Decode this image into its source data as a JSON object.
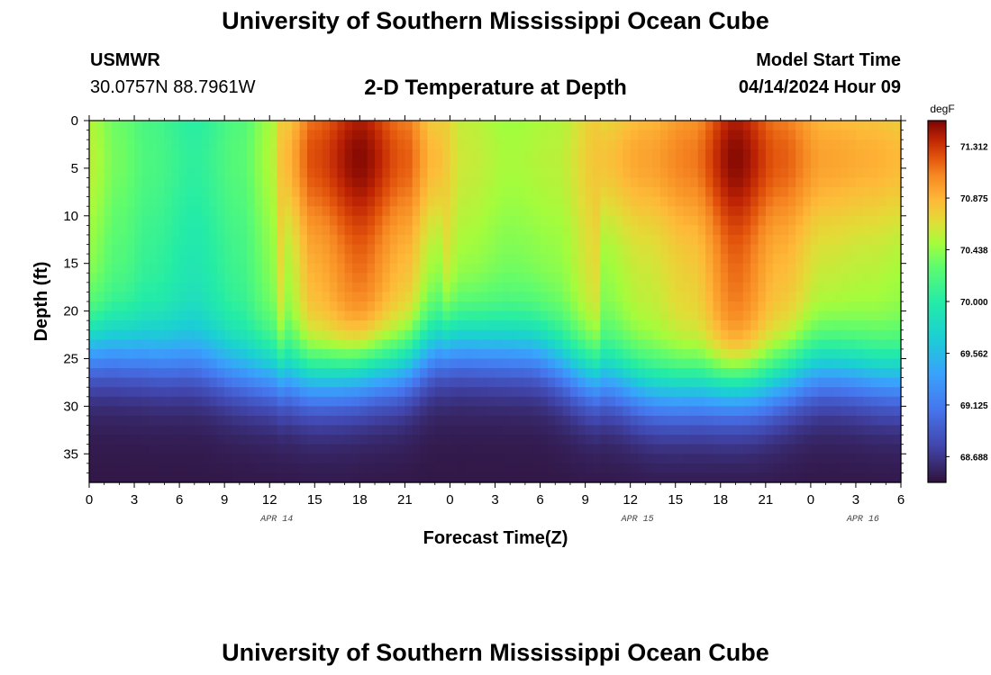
{
  "header": {
    "title": "University of Southern Mississippi Ocean Cube",
    "station": "USMWR",
    "coords": "30.0757N  88.7961W",
    "subtitle": "2-D Temperature at Depth",
    "model_label": "Model Start Time",
    "model_time": "04/14/2024 Hour 09"
  },
  "footer": {
    "title": "University of Southern Mississippi Ocean Cube"
  },
  "chart_data": {
    "type": "heatmap",
    "title": "2-D Temperature at Depth",
    "xlabel": "Forecast Time(Z)",
    "ylabel": "Depth (ft)",
    "x_range_hours": [
      0,
      54
    ],
    "y_range_ft": [
      0,
      38
    ],
    "x_ticks": [
      "0",
      "3",
      "6",
      "9",
      "12",
      "15",
      "18",
      "21",
      "0",
      "3",
      "6",
      "9",
      "12",
      "15",
      "18",
      "21",
      "0",
      "3",
      "6"
    ],
    "x_tick_hours": [
      0,
      3,
      6,
      9,
      12,
      15,
      18,
      21,
      24,
      27,
      30,
      33,
      36,
      39,
      42,
      45,
      48,
      51,
      54
    ],
    "y_ticks": [
      "0",
      "5",
      "10",
      "15",
      "20",
      "25",
      "30",
      "35"
    ],
    "y_tick_values": [
      0,
      5,
      10,
      15,
      20,
      25,
      30,
      35
    ],
    "date_labels": [
      {
        "text": "APR 14",
        "hour": 12
      },
      {
        "text": "APR 15",
        "hour": 36
      },
      {
        "text": "APR 16",
        "hour": 51
      }
    ],
    "colorbar": {
      "unit": "degF",
      "range": [
        68.47,
        71.53
      ],
      "tick_labels": [
        "71.312",
        "70.875",
        "70.438",
        "70.000",
        "69.562",
        "69.125",
        "68.688"
      ],
      "tick_values": [
        71.312,
        70.875,
        70.438,
        70.0,
        69.562,
        69.125,
        68.688
      ]
    },
    "surface_temperature_profile": [
      {
        "hour": 0,
        "t": 70.55
      },
      {
        "hour": 2,
        "t": 70.35
      },
      {
        "hour": 4,
        "t": 70.2
      },
      {
        "hour": 7,
        "t": 70.05
      },
      {
        "hour": 10,
        "t": 70.25
      },
      {
        "hour": 12,
        "t": 70.5
      },
      {
        "hour": 13,
        "t": 70.85
      },
      {
        "hour": 15,
        "t": 71.25
      },
      {
        "hour": 18,
        "t": 71.5
      },
      {
        "hour": 21,
        "t": 71.2
      },
      {
        "hour": 23,
        "t": 70.85
      },
      {
        "hour": 25,
        "t": 70.6
      },
      {
        "hour": 28,
        "t": 70.5
      },
      {
        "hour": 31,
        "t": 70.55
      },
      {
        "hour": 34,
        "t": 70.8
      },
      {
        "hour": 37,
        "t": 70.95
      },
      {
        "hour": 40,
        "t": 71.1
      },
      {
        "hour": 43,
        "t": 71.5
      },
      {
        "hour": 46,
        "t": 71.2
      },
      {
        "hour": 49,
        "t": 70.95
      },
      {
        "hour": 52,
        "t": 70.9
      },
      {
        "hour": 54,
        "t": 70.85
      }
    ],
    "thermocline_depth_profile": [
      {
        "hour": 0,
        "d": 24
      },
      {
        "hour": 6,
        "d": 25
      },
      {
        "hour": 11,
        "d": 26.5
      },
      {
        "hour": 15,
        "d": 27
      },
      {
        "hour": 20,
        "d": 26
      },
      {
        "hour": 24,
        "d": 23.5
      },
      {
        "hour": 29,
        "d": 24
      },
      {
        "hour": 34,
        "d": 27
      },
      {
        "hour": 38,
        "d": 28.5
      },
      {
        "hour": 44,
        "d": 28
      },
      {
        "hour": 49,
        "d": 26
      },
      {
        "hour": 54,
        "d": 27
      }
    ],
    "bottom_temperature_ft38": 68.5
  }
}
